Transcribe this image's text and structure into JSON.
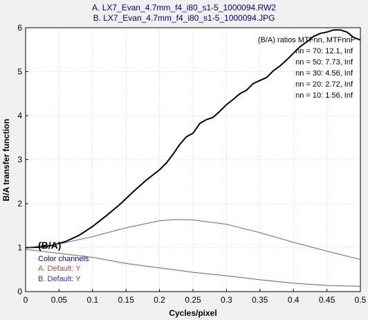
{
  "window": {
    "background": "#f0f0f0"
  },
  "chart_data": {
    "type": "line",
    "title_lines": [
      "A.  LX7_Evan_4.7mm_f4_i80_s1-5_1000094.RW2",
      "B.  LX7_Evan_4.7mm_f4_i80_s1-5_1000094.JPG"
    ],
    "xlabel": "Cycles/pixel",
    "ylabel": "B/A transfer function",
    "xlim": [
      0,
      0.5
    ],
    "ylim": [
      0,
      6
    ],
    "x_ticks": [
      "0",
      "0.05",
      "0.1",
      "0.15",
      "0.2",
      "0.25",
      "0.3",
      "0.35",
      "0.4",
      "0.45",
      "0.5"
    ],
    "y_ticks": [
      "0",
      "1",
      "2",
      "3",
      "4",
      "5",
      "6"
    ],
    "grid": true,
    "colors": {
      "title": "#000080",
      "ratio": "#000000",
      "channel_a": "#a05050",
      "channel_b": "#6060c0",
      "plot_bg": "#ffffff"
    },
    "series": [
      {
        "name": "(B/A)",
        "color": "#000000",
        "points": [
          [
            0,
            1.0
          ],
          [
            0.02,
            1.01
          ],
          [
            0.04,
            1.05
          ],
          [
            0.06,
            1.14
          ],
          [
            0.08,
            1.28
          ],
          [
            0.1,
            1.48
          ],
          [
            0.12,
            1.72
          ],
          [
            0.14,
            1.97
          ],
          [
            0.16,
            2.26
          ],
          [
            0.18,
            2.53
          ],
          [
            0.2,
            2.77
          ],
          [
            0.21,
            2.92
          ],
          [
            0.22,
            3.12
          ],
          [
            0.23,
            3.34
          ],
          [
            0.24,
            3.52
          ],
          [
            0.25,
            3.6
          ],
          [
            0.26,
            3.82
          ],
          [
            0.27,
            3.91
          ],
          [
            0.28,
            3.96
          ],
          [
            0.29,
            4.1
          ],
          [
            0.3,
            4.25
          ],
          [
            0.31,
            4.37
          ],
          [
            0.32,
            4.5
          ],
          [
            0.33,
            4.58
          ],
          [
            0.34,
            4.73
          ],
          [
            0.35,
            4.8
          ],
          [
            0.36,
            4.87
          ],
          [
            0.37,
            5.02
          ],
          [
            0.38,
            5.13
          ],
          [
            0.39,
            5.27
          ],
          [
            0.4,
            5.42
          ],
          [
            0.41,
            5.57
          ],
          [
            0.42,
            5.68
          ],
          [
            0.43,
            5.8
          ],
          [
            0.44,
            5.87
          ],
          [
            0.45,
            5.9
          ],
          [
            0.46,
            5.95
          ],
          [
            0.47,
            5.95
          ],
          [
            0.48,
            5.9
          ],
          [
            0.49,
            5.78
          ],
          [
            0.5,
            5.72
          ]
        ]
      },
      {
        "name": "B. Default: Y",
        "color": "#6060c0",
        "points": [
          [
            0,
            1.0
          ],
          [
            0.05,
            1.08
          ],
          [
            0.1,
            1.25
          ],
          [
            0.15,
            1.45
          ],
          [
            0.2,
            1.61
          ],
          [
            0.225,
            1.64
          ],
          [
            0.25,
            1.63
          ],
          [
            0.3,
            1.53
          ],
          [
            0.35,
            1.34
          ],
          [
            0.4,
            1.12
          ],
          [
            0.45,
            0.92
          ],
          [
            0.5,
            0.73
          ]
        ]
      },
      {
        "name": "A. Default: Y",
        "color": "#a05050",
        "points": [
          [
            0,
            0.96
          ],
          [
            0.05,
            0.87
          ],
          [
            0.1,
            0.78
          ],
          [
            0.15,
            0.64
          ],
          [
            0.2,
            0.54
          ],
          [
            0.25,
            0.44
          ],
          [
            0.3,
            0.36
          ],
          [
            0.35,
            0.27
          ],
          [
            0.4,
            0.19
          ],
          [
            0.45,
            0.14
          ],
          [
            0.5,
            0.12
          ]
        ]
      }
    ],
    "legend": {
      "position": "bottom-left",
      "ratio_label": "(B/A)",
      "heading": "Color channels",
      "items": [
        "A.  Default: Y",
        "B.  Default: Y"
      ]
    },
    "ratio_table": {
      "position": "top-right",
      "header": "(B/A) ratios  MTFnn,  MTFnnP",
      "rows": [
        "nn = 70:  12.1,  Inf",
        "nn = 50:  7.73,  Inf",
        "nn = 30:  4.56,  Inf",
        "nn = 20:  2.72,  Inf",
        "nn = 10:  1.56,  Inf"
      ]
    }
  }
}
